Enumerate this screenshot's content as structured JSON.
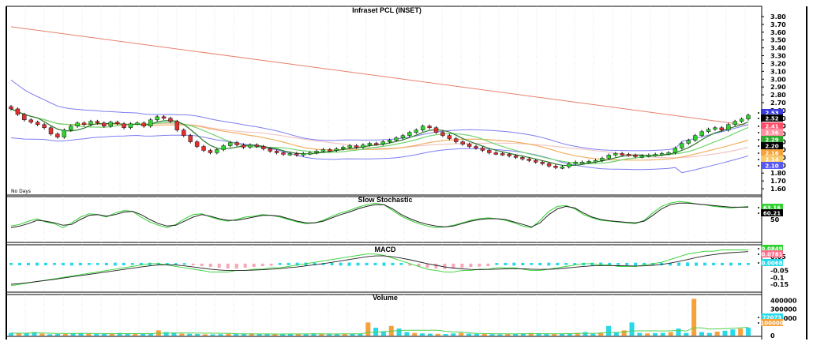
{
  "chart_data": [
    {
      "type": "candlestick",
      "title": "Infraset PCL (INSET)",
      "period_label": "No Days",
      "ylim": [
        1.55,
        3.85
      ],
      "yticks": [
        "3.80",
        "3.70",
        "3.60",
        "3.50",
        "3.40",
        "3.30",
        "3.20",
        "3.10",
        "3.00",
        "2.90",
        "2.80",
        "2.70",
        "2.60",
        "2.50",
        "2.40",
        "2.30",
        "2.20",
        "2.10",
        "2.00",
        "1.90",
        "1.80",
        "1.70",
        "1.60"
      ],
      "close": [
        2.62,
        2.55,
        2.48,
        2.45,
        2.42,
        2.38,
        2.3,
        2.26,
        2.35,
        2.4,
        2.44,
        2.42,
        2.46,
        2.44,
        2.4,
        2.45,
        2.43,
        2.38,
        2.43,
        2.44,
        2.4,
        2.48,
        2.52,
        2.5,
        2.46,
        2.35,
        2.28,
        2.2,
        2.14,
        2.09,
        2.06,
        2.1,
        2.15,
        2.19,
        2.16,
        2.13,
        2.16,
        2.14,
        2.11,
        2.08,
        2.06,
        2.04,
        2.05,
        2.03,
        2.05,
        2.06,
        2.08,
        2.1,
        2.09,
        2.11,
        2.13,
        2.15,
        2.13,
        2.16,
        2.18,
        2.17,
        2.2,
        2.22,
        2.25,
        2.28,
        2.32,
        2.35,
        2.4,
        2.38,
        2.32,
        2.28,
        2.24,
        2.2,
        2.17,
        2.14,
        2.12,
        2.09,
        2.06,
        2.05,
        2.04,
        2.02,
        2.0,
        1.98,
        1.96,
        1.94,
        1.92,
        1.89,
        1.87,
        1.88,
        1.92,
        1.94,
        1.94,
        1.95,
        1.96,
        1.99,
        2.03,
        2.05,
        2.04,
        2.03,
        2.01,
        2.02,
        2.03,
        2.04,
        2.05,
        2.06,
        2.12,
        2.18,
        2.22,
        2.28,
        2.33,
        2.36,
        2.38,
        2.35,
        2.42,
        2.46,
        2.49,
        2.54
      ],
      "overlays": [
        {
          "name": "200-day MA",
          "color": "#e8816b",
          "start": 3.67,
          "end": 2.41
        },
        {
          "name": "Bollinger band",
          "color": "#7d7df2"
        },
        {
          "name": "Moving averages",
          "colors": [
            "#2b7a2b",
            "#6fd46f",
            "#f0b060",
            "#f2c6c6"
          ]
        }
      ],
      "value_labels": [
        {
          "text": "2.53",
          "bg": "#3a3ae0",
          "fg": "#ffffff"
        },
        {
          "text": "2.52",
          "bg": "#000000",
          "fg": "#ffffff"
        },
        {
          "text": "2.41",
          "bg": "#ff4d6a",
          "fg": "#ffffff"
        },
        {
          "text": "2.36",
          "bg": "#ff8fa0",
          "fg": "#ffffff"
        },
        {
          "text": "2.29",
          "bg": "#2ea82e",
          "fg": "#ffffff"
        },
        {
          "text": "2.20",
          "bg": "#000000",
          "fg": "#ffffff"
        },
        {
          "text": "2.16",
          "bg": "#f6a13a",
          "fg": "#ffffff"
        },
        {
          "text": "2.14",
          "bg": "#f6c96a",
          "fg": "#ffffff"
        },
        {
          "text": "2.10",
          "bg": "#5a5af2",
          "fg": "#ffffff"
        }
      ]
    },
    {
      "type": "line",
      "title": "Slow Stochastic",
      "ylim": [
        0,
        100
      ],
      "yticks": [
        "50"
      ],
      "series": [
        {
          "color": "#2fd12f",
          "values": [
            34,
            38,
            46,
            52,
            44,
            40,
            30,
            42,
            56,
            64,
            62,
            56,
            66,
            72,
            70,
            56,
            44,
            36,
            30,
            38,
            52,
            62,
            64,
            56,
            50,
            46,
            50,
            56,
            58,
            62,
            60,
            56,
            50,
            44,
            40,
            42,
            48,
            58,
            66,
            72,
            80,
            86,
            90,
            86,
            72,
            58,
            48,
            40,
            34,
            30,
            32,
            36,
            42,
            48,
            52,
            54,
            52,
            48,
            42,
            34,
            30,
            48,
            70,
            82,
            84,
            76,
            62,
            54,
            48,
            46,
            44,
            42,
            40,
            48,
            66,
            82,
            90,
            94,
            92,
            88,
            86,
            82,
            80,
            78,
            80,
            82
          ]
        },
        {
          "color": "#222222",
          "values": [
            30,
            34,
            40,
            48,
            46,
            42,
            36,
            38,
            50,
            60,
            62,
            58,
            62,
            68,
            70,
            62,
            50,
            40,
            34,
            36,
            46,
            56,
            62,
            58,
            52,
            48,
            48,
            52,
            56,
            60,
            60,
            58,
            52,
            46,
            42,
            42,
            46,
            54,
            62,
            68,
            76,
            82,
            86,
            86,
            76,
            62,
            52,
            44,
            38,
            34,
            32,
            34,
            40,
            46,
            50,
            52,
            52,
            50,
            44,
            38,
            32,
            42,
            62,
            76,
            82,
            78,
            66,
            56,
            50,
            47,
            45,
            43,
            42,
            46,
            60,
            76,
            86,
            90,
            90,
            88,
            86,
            84,
            82,
            80,
            80,
            80
          ]
        }
      ],
      "value_labels": [
        {
          "text": "63.16",
          "bg": "#2fd12f",
          "fg": "#ffffff"
        },
        {
          "text": "60.21",
          "bg": "#000000",
          "fg": "#ffffff"
        }
      ]
    },
    {
      "type": "bar",
      "title": "MACD",
      "ylim": [
        -0.19,
        0.12
      ],
      "yticks": [
        "0.05",
        "-0.05",
        "-0.1",
        "-0.15"
      ],
      "histogram": [
        0.005,
        0.006,
        0.006,
        0.007,
        0.006,
        0.005,
        0.006,
        0.007,
        0.006,
        0.005,
        0.005,
        0.006,
        0.007,
        0.006,
        0.005,
        0.006,
        0.007,
        0.006,
        0.005,
        0.004,
        0.004,
        -0.004,
        -0.006,
        -0.008,
        -0.01,
        -0.012,
        -0.012,
        -0.01,
        -0.008,
        -0.006,
        -0.005,
        0.005,
        0.006,
        0.007,
        0.008,
        0.006,
        0.005,
        0.006,
        0.007,
        0.008,
        0.007,
        0.006,
        0.006,
        0.008,
        0.006,
        0.005,
        -0.005,
        -0.007,
        -0.01,
        -0.012,
        -0.013,
        -0.012,
        -0.01,
        -0.008,
        -0.007,
        -0.006,
        0.005,
        0.006,
        0.007,
        0.006,
        0.005,
        0.006,
        0.007,
        0.006,
        0.005,
        0.005,
        0.006,
        0.007,
        0.008,
        0.006,
        0.005,
        0.006,
        0.007,
        0.006,
        0.005,
        0.006,
        0.007,
        0.008,
        0.009,
        0.008,
        0.007,
        0.006,
        0.006,
        0.007,
        0.006,
        0.005
      ],
      "series": [
        {
          "color": "#2fd12f",
          "values": [
            -0.16,
            -0.15,
            -0.14,
            -0.13,
            -0.12,
            -0.11,
            -0.1,
            -0.09,
            -0.08,
            -0.07,
            -0.06,
            -0.05,
            -0.04,
            -0.03,
            -0.02,
            -0.01,
            0.0,
            0.0,
            -0.01,
            -0.02,
            -0.03,
            -0.04,
            -0.05,
            -0.06,
            -0.06,
            -0.06,
            -0.05,
            -0.05,
            -0.04,
            -0.04,
            -0.03,
            -0.03,
            -0.02,
            -0.01,
            0.0,
            0.01,
            0.02,
            0.03,
            0.04,
            0.05,
            0.06,
            0.07,
            0.07,
            0.06,
            0.04,
            0.02,
            0.0,
            -0.02,
            -0.04,
            -0.05,
            -0.06,
            -0.06,
            -0.05,
            -0.05,
            -0.04,
            -0.04,
            -0.03,
            -0.03,
            -0.03,
            -0.04,
            -0.05,
            -0.05,
            -0.04,
            -0.03,
            -0.02,
            -0.01,
            0.0,
            0.0,
            -0.01,
            -0.01,
            -0.02,
            -0.02,
            -0.02,
            -0.01,
            0.0,
            0.01,
            0.03,
            0.05,
            0.07,
            0.08,
            0.09,
            0.09,
            0.1,
            0.1,
            0.1,
            0.1
          ]
        },
        {
          "color": "#222222",
          "values": [
            -0.15,
            -0.145,
            -0.138,
            -0.13,
            -0.122,
            -0.114,
            -0.105,
            -0.096,
            -0.087,
            -0.078,
            -0.069,
            -0.06,
            -0.051,
            -0.042,
            -0.033,
            -0.024,
            -0.016,
            -0.01,
            -0.008,
            -0.01,
            -0.016,
            -0.024,
            -0.032,
            -0.04,
            -0.046,
            -0.05,
            -0.05,
            -0.049,
            -0.047,
            -0.044,
            -0.04,
            -0.036,
            -0.03,
            -0.024,
            -0.016,
            -0.008,
            0.0,
            0.01,
            0.02,
            0.03,
            0.04,
            0.05,
            0.056,
            0.056,
            0.05,
            0.04,
            0.028,
            0.014,
            0.0,
            -0.012,
            -0.024,
            -0.032,
            -0.038,
            -0.042,
            -0.043,
            -0.042,
            -0.04,
            -0.038,
            -0.037,
            -0.038,
            -0.04,
            -0.042,
            -0.041,
            -0.038,
            -0.032,
            -0.026,
            -0.02,
            -0.016,
            -0.014,
            -0.014,
            -0.015,
            -0.016,
            -0.017,
            -0.016,
            -0.012,
            -0.006,
            0.004,
            0.016,
            0.03,
            0.044,
            0.056,
            0.066,
            0.074,
            0.08,
            0.084,
            0.087
          ]
        }
      ],
      "value_labels": [
        {
          "text": "0.0849",
          "bg": "#2fd12f",
          "fg": "#ffffff"
        },
        {
          "text": "0.0781",
          "bg": "#ff6f8c",
          "fg": "#ffffff"
        },
        {
          "text": "0.0068",
          "bg": "#27d8e8",
          "fg": "#ffffff"
        }
      ]
    },
    {
      "type": "bar",
      "title": "Volume",
      "ylim": [
        0,
        460000
      ],
      "yticks": [
        "400000",
        "300000",
        "200000",
        "0"
      ],
      "values": [
        30000,
        25000,
        28000,
        40000,
        22000,
        15000,
        18000,
        20000,
        25000,
        30000,
        22000,
        20000,
        18000,
        26000,
        30000,
        20000,
        18000,
        22000,
        26000,
        60000,
        40000,
        35000,
        22000,
        20000,
        18000,
        15000,
        14000,
        16000,
        20000,
        18000,
        22000,
        25000,
        20000,
        18000,
        16000,
        14000,
        18000,
        20000,
        22000,
        25000,
        20000,
        18000,
        22000,
        20000,
        18000,
        20000,
        150000,
        90000,
        50000,
        110000,
        80000,
        40000,
        30000,
        25000,
        22000,
        20000,
        18000,
        25000,
        30000,
        22000,
        20000,
        18000,
        16000,
        14000,
        20000,
        22000,
        25000,
        30000,
        28000,
        20000,
        18000,
        22000,
        25000,
        30000,
        40000,
        20000,
        35000,
        110000,
        40000,
        60000,
        150000,
        30000,
        25000,
        28000,
        30000,
        40000,
        80000,
        30000,
        420000,
        40000,
        30000,
        45000,
        55000,
        70000,
        80000,
        90000
      ],
      "colors": {
        "up": "#27d8e8",
        "down": "#f6a13a",
        "avg": "#4fd04f"
      },
      "value_labels": [
        {
          "text": "72073",
          "bg": "#27d8e8",
          "fg": "#ffffff"
        },
        {
          "text": "100000",
          "bg": "#f6a13a",
          "fg": "#ffffff"
        }
      ]
    }
  ]
}
